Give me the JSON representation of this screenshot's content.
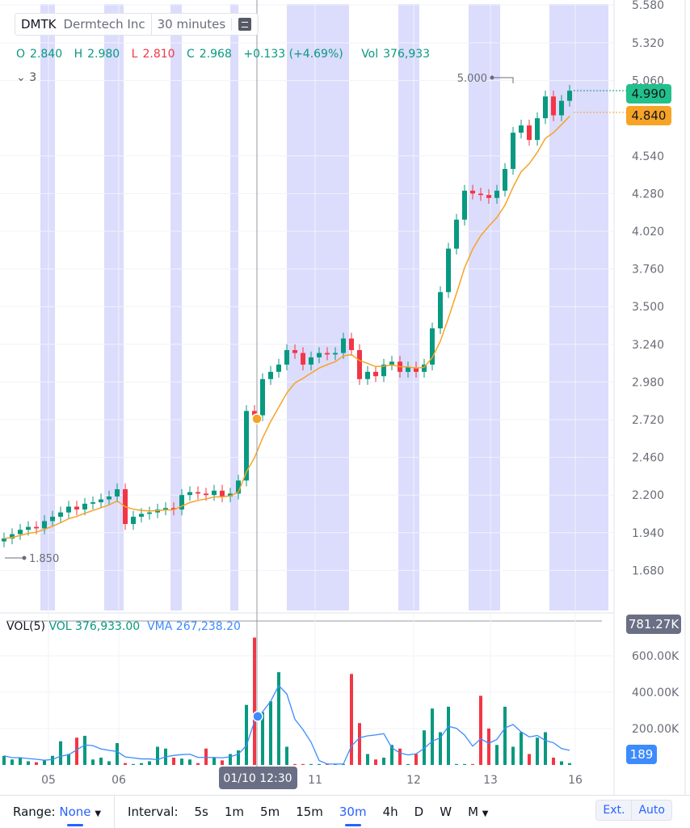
{
  "header": {
    "symbol": "DMTK",
    "name": "Dermtech Inc",
    "interval": "30 minutes"
  },
  "ohlc": {
    "o_label": "O",
    "o": "2.840",
    "h_label": "H",
    "h": "2.980",
    "l_label": "L",
    "l": "2.810",
    "c_label": "C",
    "c": "2.968",
    "change": "+0.133 (+4.69%)",
    "vol_label": "Vol",
    "vol": "376,933"
  },
  "indicators_collapsed": "3",
  "volume_legend": {
    "title": "VOL(5)",
    "vol": "VOL 376,933.00",
    "vma": "VMA 267,238.20"
  },
  "price_axis": {
    "ticks": [
      "5.580",
      "5.320",
      "5.060",
      "4.540",
      "4.280",
      "4.020",
      "3.760",
      "3.500",
      "3.240",
      "2.980",
      "2.720",
      "2.460",
      "2.200",
      "1.940",
      "1.680"
    ],
    "last_price": "4.990",
    "ma_price": "4.840",
    "high_marker": "5.000",
    "low_marker": "1.850"
  },
  "volume_axis": {
    "ticks": [
      "600.00K",
      "400.00K",
      "200.00K"
    ],
    "top_tag": "781.27K",
    "cursor_tag": "189"
  },
  "time_axis": {
    "ticks": [
      "05",
      "06",
      "11",
      "12",
      "13",
      "16"
    ],
    "crosshair_label": "01/10 12:30"
  },
  "colors": {
    "up": "#089981",
    "down": "#f23645",
    "ma": "#f7a325",
    "vma": "#3d8bfd",
    "extended_hours": "#dcdcfc"
  },
  "chart_data": {
    "type": "candlestick",
    "closes": [
      1.9,
      1.93,
      1.96,
      1.98,
      1.97,
      2.02,
      2.05,
      2.08,
      2.12,
      2.1,
      2.14,
      2.15,
      2.17,
      2.19,
      2.24,
      2.0,
      2.05,
      2.07,
      2.08,
      2.1,
      2.11,
      2.1,
      2.2,
      2.22,
      2.21,
      2.2,
      2.23,
      2.19,
      2.21,
      2.3,
      2.78,
      2.75,
      3.0,
      3.05,
      3.1,
      3.2,
      3.18,
      3.1,
      3.15,
      3.18,
      3.17,
      3.18,
      3.28,
      3.2,
      3.0,
      3.05,
      3.02,
      3.1,
      3.12,
      3.05,
      3.08,
      3.05,
      3.1,
      3.35,
      3.6,
      3.9,
      4.1,
      4.3,
      4.28,
      4.27,
      4.25,
      4.3,
      4.45,
      4.7,
      4.75,
      4.65,
      4.8,
      4.95,
      4.82,
      4.92,
      4.99
    ],
    "volumes_k": [
      50,
      30,
      40,
      20,
      15,
      25,
      50,
      130,
      60,
      150,
      160,
      30,
      40,
      20,
      120,
      10,
      5,
      10,
      20,
      100,
      90,
      40,
      35,
      30,
      10,
      90,
      40,
      25,
      60,
      80,
      330,
      700,
      290,
      350,
      510,
      100,
      5,
      5,
      5,
      5,
      5,
      5,
      5,
      500,
      230,
      60,
      30,
      40,
      110,
      90,
      5,
      60,
      190,
      310,
      180,
      320,
      5,
      5,
      5,
      380,
      200,
      110,
      320,
      100,
      180,
      60,
      150,
      180,
      40,
      20,
      10
    ],
    "ylim": [
      1.55,
      5.58
    ],
    "vol_ylim": [
      0,
      781.27
    ],
    "vma_period": 5
  }
}
